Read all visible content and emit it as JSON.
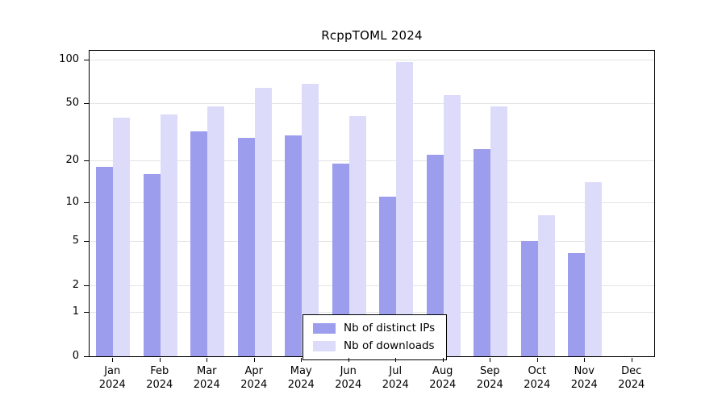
{
  "chart_data": {
    "type": "bar",
    "title": "RcppTOML 2024",
    "y_scale": "log1p",
    "ylim": [
      0,
      100
    ],
    "y_ticks": [
      0,
      1,
      2,
      5,
      10,
      20,
      50,
      100
    ],
    "grid": true,
    "grid_color": "#e4e4e4",
    "legend_position": "bottom-center",
    "categories": [
      "Jan",
      "Feb",
      "Mar",
      "Apr",
      "May",
      "Jun",
      "Jul",
      "Aug",
      "Sep",
      "Oct",
      "Nov",
      "Dec"
    ],
    "category_year": "2024",
    "series": [
      {
        "key": "distinct-ips",
        "name": "Nb of distinct IPs",
        "color": "#9d9dee",
        "values": [
          18,
          16,
          32,
          29,
          30,
          19,
          11,
          22,
          24,
          5,
          4,
          0
        ]
      },
      {
        "key": "downloads",
        "name": "Nb of downloads",
        "color": "#dcdcfa",
        "values": [
          40,
          42,
          48,
          64,
          68,
          41,
          96,
          57,
          48,
          8,
          14,
          0
        ]
      }
    ]
  }
}
